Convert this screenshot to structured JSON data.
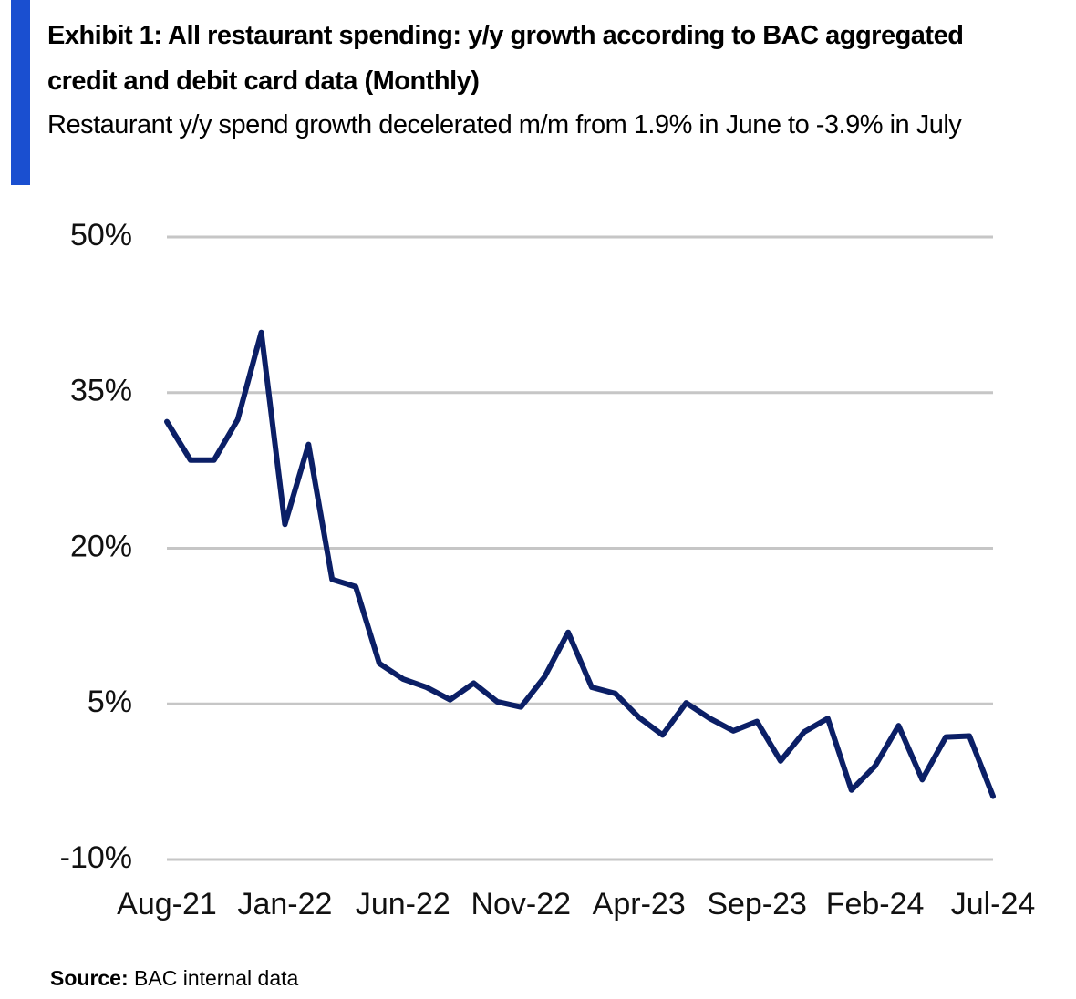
{
  "chart_data": {
    "type": "line",
    "title": "Exhibit 1: All restaurant spending: y/y growth according to BAC aggregated credit and debit card data (Monthly)",
    "subtitle": "Restaurant y/y spend growth decelerated m/m from 1.9% in June to -3.9% in July",
    "source_label": "Source:",
    "source_text": "BAC internal data",
    "categories": [
      "Aug-21",
      null,
      null,
      null,
      null,
      "Jan-22",
      null,
      null,
      null,
      null,
      "Jun-22",
      null,
      null,
      null,
      null,
      "Nov-22",
      null,
      null,
      null,
      null,
      "Apr-23",
      null,
      null,
      null,
      null,
      "Sep-23",
      null,
      null,
      null,
      null,
      "Feb-24",
      null,
      null,
      null,
      null,
      "Jul-24"
    ],
    "series": [
      {
        "name": "All restaurant spending",
        "color": "#0b1f66",
        "values": [
          32.2,
          28.5,
          28.5,
          32.4,
          40.8,
          22.3,
          30.0,
          17.0,
          16.3,
          8.9,
          7.4,
          6.6,
          5.4,
          7.0,
          5.2,
          4.7,
          7.6,
          11.9,
          6.6,
          6.0,
          3.7,
          2.0,
          5.1,
          3.6,
          2.4,
          3.3,
          -0.5,
          2.3,
          3.6,
          -3.3,
          -1.0,
          2.9,
          -2.3,
          1.8,
          1.9,
          -3.9
        ]
      }
    ],
    "ylim": [
      -10,
      50
    ],
    "yticks": [
      {
        "value": -10,
        "label": "-10%"
      },
      {
        "value": 5,
        "label": "5%"
      },
      {
        "value": 20,
        "label": "20%"
      },
      {
        "value": 35,
        "label": "35%"
      },
      {
        "value": 50,
        "label": "50%"
      }
    ],
    "grid": true
  }
}
